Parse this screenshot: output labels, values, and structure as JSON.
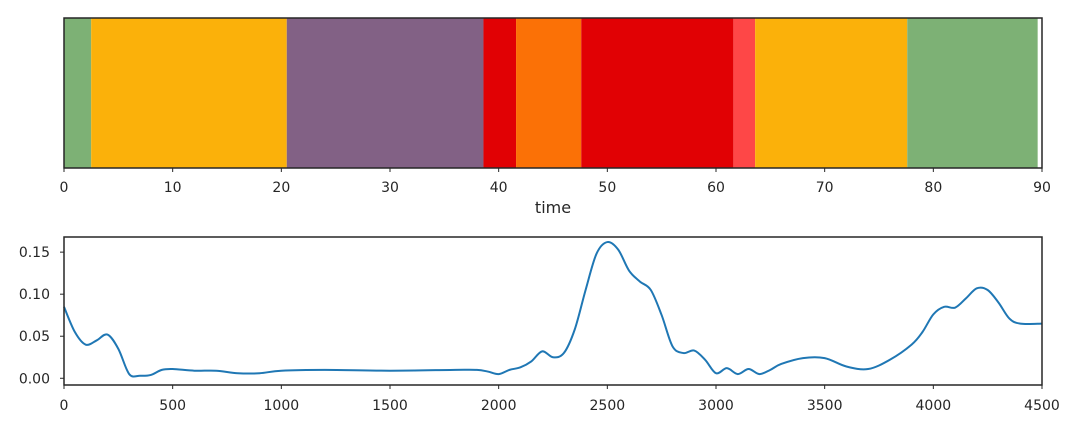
{
  "chart_data": [
    {
      "type": "segments",
      "xlabel": "time",
      "xlim": [
        0,
        90
      ],
      "xticks": [
        0,
        10,
        20,
        30,
        40,
        50,
        60,
        70,
        80,
        90
      ],
      "segments": [
        {
          "start": 0.0,
          "end": 2.5,
          "color": "#7db175"
        },
        {
          "start": 2.5,
          "end": 20.5,
          "color": "#fbb10a"
        },
        {
          "start": 20.5,
          "end": 38.6,
          "color": "#826185"
        },
        {
          "start": 38.6,
          "end": 41.6,
          "color": "#e10104"
        },
        {
          "start": 41.6,
          "end": 47.6,
          "color": "#fb7106"
        },
        {
          "start": 47.6,
          "end": 61.6,
          "color": "#e10104"
        },
        {
          "start": 61.6,
          "end": 63.6,
          "color": "#fe4747"
        },
        {
          "start": 63.6,
          "end": 77.6,
          "color": "#fbb10a"
        },
        {
          "start": 77.6,
          "end": 89.6,
          "color": "#7db175"
        }
      ]
    },
    {
      "type": "line",
      "xlim": [
        0,
        4500
      ],
      "ylim": [
        -0.008,
        0.168
      ],
      "xticks": [
        0,
        500,
        1000,
        1500,
        2000,
        2500,
        3000,
        3500,
        4000,
        4500
      ],
      "yticks": [
        0.0,
        0.05,
        0.1,
        0.15
      ],
      "ytick_labels": [
        "0.00",
        "0.05",
        "0.10",
        "0.15"
      ],
      "line_color": "#1f77b4",
      "x": [
        0,
        50,
        100,
        150,
        200,
        250,
        300,
        350,
        400,
        450,
        500,
        600,
        700,
        800,
        900,
        1000,
        1200,
        1500,
        1800,
        1900,
        1950,
        2000,
        2050,
        2100,
        2150,
        2200,
        2250,
        2300,
        2350,
        2400,
        2450,
        2500,
        2550,
        2600,
        2650,
        2700,
        2750,
        2800,
        2850,
        2900,
        2950,
        3000,
        3050,
        3100,
        3150,
        3200,
        3250,
        3300,
        3400,
        3500,
        3600,
        3700,
        3800,
        3900,
        3950,
        4000,
        4050,
        4100,
        4150,
        4200,
        4250,
        4300,
        4350,
        4400,
        4500
      ],
      "y": [
        0.085,
        0.055,
        0.04,
        0.045,
        0.052,
        0.035,
        0.005,
        0.003,
        0.004,
        0.01,
        0.011,
        0.009,
        0.009,
        0.006,
        0.006,
        0.009,
        0.01,
        0.009,
        0.01,
        0.01,
        0.008,
        0.005,
        0.01,
        0.013,
        0.02,
        0.032,
        0.025,
        0.03,
        0.058,
        0.105,
        0.148,
        0.162,
        0.153,
        0.128,
        0.115,
        0.105,
        0.075,
        0.038,
        0.03,
        0.033,
        0.022,
        0.006,
        0.012,
        0.005,
        0.011,
        0.005,
        0.01,
        0.017,
        0.024,
        0.024,
        0.014,
        0.011,
        0.022,
        0.04,
        0.055,
        0.076,
        0.085,
        0.084,
        0.095,
        0.107,
        0.105,
        0.09,
        0.071,
        0.065,
        0.065
      ]
    }
  ]
}
